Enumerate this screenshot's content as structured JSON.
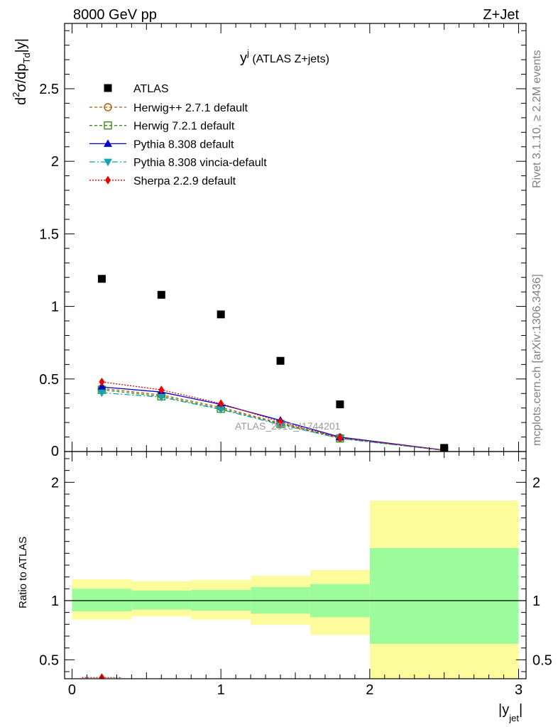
{
  "header": {
    "left": "8000 GeV pp",
    "right": "Z+Jet"
  },
  "plot_title": {
    "main": "y",
    "sup": "j",
    "rest": " (ATLAS Z+jets)"
  },
  "watermark": "ATLAS_2013_I1744201",
  "side_labels": {
    "rivet": "Rivet 3.1.10, ≥ 2.2M events",
    "mcplots": "mcplots.cern.ch [arXiv:1306.3436]"
  },
  "axes": {
    "ylabel_main": {
      "p1": "d",
      "p1sup": "2",
      "p2": "σ/dp",
      "p2sub": "Td",
      "p3": "|y|"
    },
    "ylabel_ratio": "Ratio to ATLAS",
    "xlabel": {
      "p1": "|y",
      "p1sub": "jet",
      "p2": "|"
    }
  },
  "chart_data": {
    "type": "scatter",
    "xlim": [
      -0.05,
      3.05
    ],
    "ylim_main": [
      0,
      2.95
    ],
    "ylim_ratio": [
      0.34,
      2.26
    ],
    "x_ticks": [
      "0",
      "1",
      "2",
      "3"
    ],
    "y_ticks_main": [
      "0.5",
      "1",
      "1.5",
      "2",
      "2.5"
    ],
    "y_ticks_ratio": [
      "0.5",
      "1",
      "2"
    ],
    "bins": [
      [
        0,
        0.4
      ],
      [
        0.4,
        0.8
      ],
      [
        0.8,
        1.2
      ],
      [
        1.2,
        1.6
      ],
      [
        1.6,
        2.0
      ],
      [
        2.0,
        3.0
      ]
    ],
    "data": {
      "name": "ATLAS",
      "x": [
        0.2,
        0.6,
        1.0,
        1.4,
        1.8,
        2.5
      ],
      "y": [
        1.19,
        1.08,
        0.945,
        0.625,
        0.325,
        0.025
      ],
      "color": "#000000"
    },
    "series": [
      {
        "name": "Herwig++ 2.7.1 default",
        "color": "#b35900",
        "marker": "circle-open",
        "dash": "4,3",
        "y": [
          0.435,
          0.39,
          0.305,
          0.195,
          0.095,
          0.008
        ]
      },
      {
        "name": "Herwig 7.2.1 default",
        "color": "#3a8f1a",
        "marker": "square-open",
        "dash": "4,3",
        "y": [
          0.425,
          0.38,
          0.295,
          0.19,
          0.09,
          0.008
        ]
      },
      {
        "name": "Pythia 8.308 default",
        "color": "#0000cc",
        "marker": "triangle-up",
        "dash": "",
        "y": [
          0.445,
          0.41,
          0.325,
          0.215,
          0.1,
          0.01
        ]
      },
      {
        "name": "Pythia 8.308 vincia-default",
        "color": "#1aa0b4",
        "marker": "triangle-down",
        "dash": "8,3,2,3",
        "y": [
          0.405,
          0.375,
          0.29,
          0.185,
          0.09,
          0.008
        ]
      },
      {
        "name": "Sherpa 2.2.9 default",
        "color": "#ee0000",
        "marker": "diamond",
        "dash": "2,2",
        "y": [
          0.48,
          0.425,
          0.33,
          0.205,
          0.095,
          0.01
        ]
      }
    ],
    "ratio_bands": {
      "inner_color": "#9cfc9c",
      "outer_color": "#fcfc9c",
      "inner": [
        [
          0.91,
          1.1
        ],
        [
          0.925,
          1.085
        ],
        [
          0.915,
          1.09
        ],
        [
          0.89,
          1.115
        ],
        [
          0.86,
          1.14
        ],
        [
          0.635,
          1.445
        ]
      ],
      "outer": [
        [
          0.84,
          1.18
        ],
        [
          0.865,
          1.165
        ],
        [
          0.84,
          1.175
        ],
        [
          0.795,
          1.21
        ],
        [
          0.71,
          1.26
        ],
        [
          0.34,
          1.845
        ]
      ]
    },
    "ratio_visible_markers": [
      {
        "series": 4,
        "x": 0.2,
        "y": 0.35
      }
    ]
  }
}
